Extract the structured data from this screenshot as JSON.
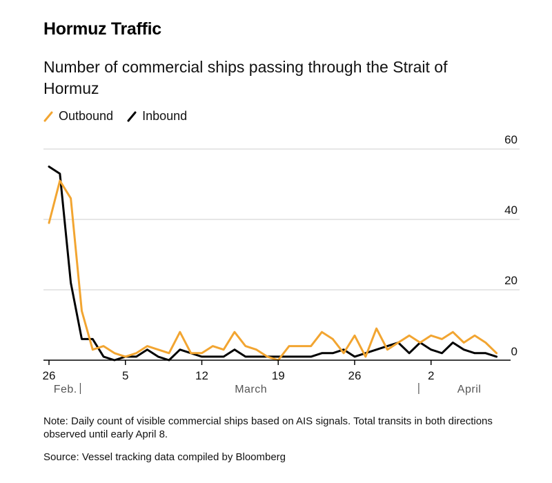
{
  "title": "Hormuz Traffic",
  "subtitle": "Number of commercial ships passing through the Strait of Hormuz",
  "note": "Note: Daily count of visible commercial ships based on AIS signals. Total transits in both directions observed until early April 8.",
  "source": "Source: Vessel tracking data compiled by Bloomberg",
  "colors": {
    "outbound": "#f2a531",
    "inbound": "#000000",
    "grid": "#cccccc",
    "axis": "#000000"
  },
  "chart_data": {
    "type": "line",
    "title": "Hormuz Traffic",
    "subtitle": "Number of commercial ships passing through the Strait of Hormuz",
    "ylim": [
      0,
      60
    ],
    "y_ticks": [
      0,
      20,
      40,
      60
    ],
    "y_axis_position": "right",
    "grid": true,
    "legend_placement": "top-left",
    "x": [
      "Feb 26",
      "Feb 27",
      "Feb 28",
      "Mar 1",
      "Mar 2",
      "Mar 3",
      "Mar 4",
      "Mar 5",
      "Mar 6",
      "Mar 7",
      "Mar 8",
      "Mar 9",
      "Mar 10",
      "Mar 11",
      "Mar 12",
      "Mar 13",
      "Mar 14",
      "Mar 15",
      "Mar 16",
      "Mar 17",
      "Mar 18",
      "Mar 19",
      "Mar 20",
      "Mar 21",
      "Mar 22",
      "Mar 23",
      "Mar 24",
      "Mar 25",
      "Mar 26",
      "Mar 27",
      "Mar 28",
      "Mar 29",
      "Mar 30",
      "Mar 31",
      "Apr 1",
      "Apr 2",
      "Apr 3",
      "Apr 4",
      "Apr 5",
      "Apr 6",
      "Apr 7",
      "Apr 8"
    ],
    "x_tick_labels": [
      {
        "label": "26",
        "index": 0
      },
      {
        "label": "5",
        "index": 7
      },
      {
        "label": "12",
        "index": 14
      },
      {
        "label": "19",
        "index": 21
      },
      {
        "label": "26",
        "index": 28
      },
      {
        "label": "2",
        "index": 35
      }
    ],
    "month_labels": [
      {
        "label": "Feb.",
        "index": 1.5,
        "divider_index": 3
      },
      {
        "label": "March",
        "index": 18.5,
        "divider_index": null
      },
      {
        "label": "April",
        "index": 38.5,
        "divider_index": 34
      }
    ],
    "series": [
      {
        "name": "Outbound",
        "color": "#f2a531",
        "values": [
          39,
          51,
          46,
          14,
          3,
          4,
          2,
          1,
          2,
          4,
          3,
          2,
          8,
          2,
          2,
          4,
          3,
          8,
          4,
          3,
          1,
          0,
          4,
          4,
          4,
          8,
          6,
          2,
          7,
          1,
          9,
          3,
          5,
          7,
          5,
          7,
          6,
          8,
          5,
          7,
          5,
          2
        ]
      },
      {
        "name": "Inbound",
        "color": "#000000",
        "values": [
          55,
          53,
          22,
          6,
          6,
          1,
          0,
          1,
          1,
          3,
          1,
          0,
          3,
          2,
          1,
          1,
          1,
          3,
          1,
          1,
          1,
          1,
          1,
          1,
          1,
          2,
          2,
          3,
          1,
          2,
          3,
          4,
          5,
          2,
          5,
          3,
          2,
          5,
          3,
          2,
          2,
          1
        ]
      }
    ]
  }
}
